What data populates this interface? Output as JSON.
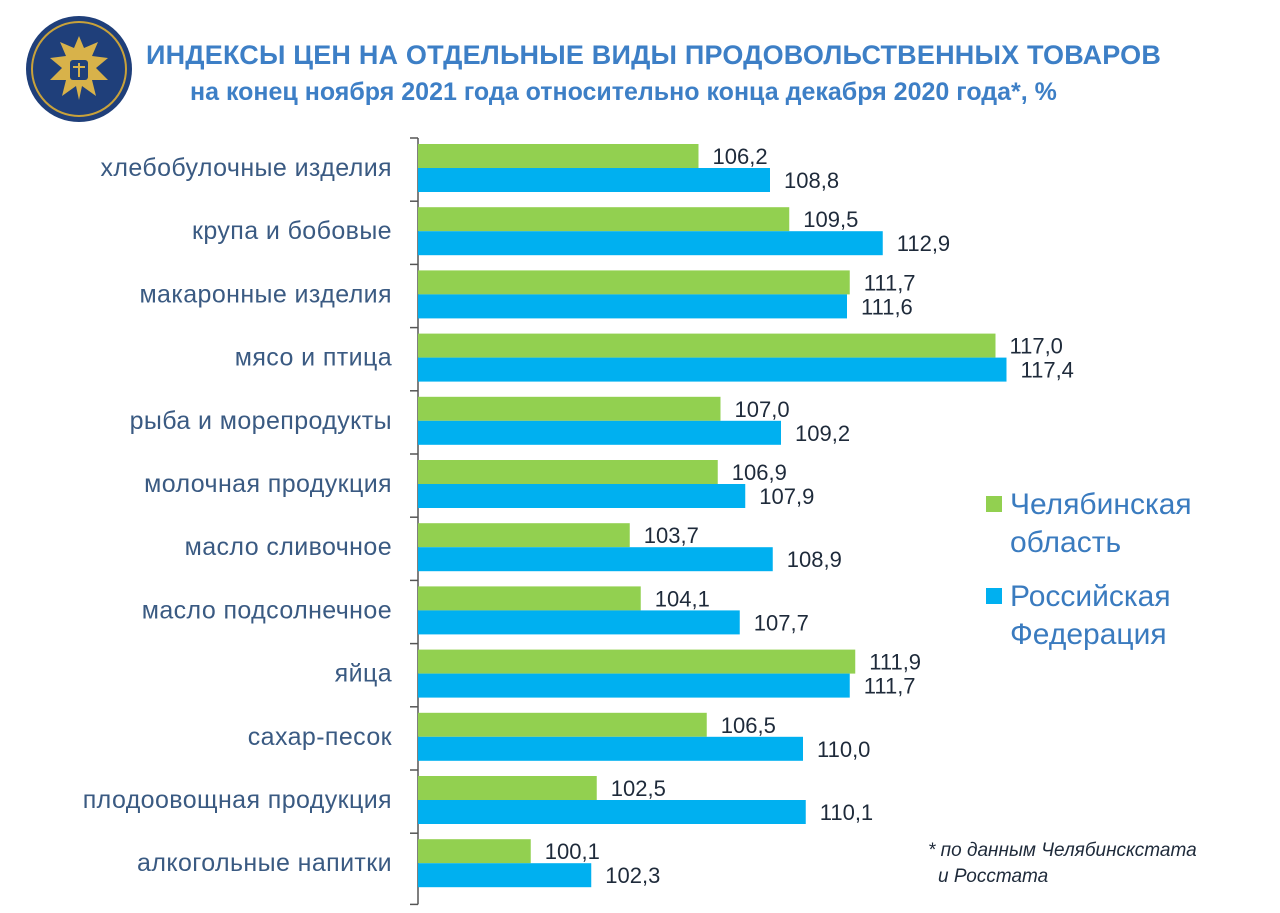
{
  "header": {
    "title": "ИНДЕКСЫ ЦЕН НА ОТДЕЛЬНЫЕ ВИДЫ ПРОДОВОЛЬСТВЕННЫХ ТОВАРОВ",
    "subtitle": "на конец ноября 2021 года относительно конца декабря 2020 года*, %"
  },
  "legend": {
    "items": [
      {
        "label_line1": "Челябинская",
        "label_line2": "область",
        "color": "#92d050"
      },
      {
        "label_line1": "Российская",
        "label_line2": "Федерация",
        "color": "#00b0f0"
      }
    ]
  },
  "footnote": {
    "line1": "* по данным Челябинскстата",
    "line2": "и Росстата"
  },
  "colors": {
    "title": "#3d7fc6",
    "category_label": "#3a5a82",
    "value_label": "#1e2a3a",
    "axis": "#555555"
  },
  "chart_data": {
    "type": "bar",
    "orientation": "horizontal",
    "categories": [
      "хлебобулочные изделия",
      "крупа и бобовые",
      "макаронные изделия",
      "мясо и птица",
      "рыба и морепродукты",
      "молочная продукция",
      "масло сливочное",
      "масло подсолнечное",
      "яйца",
      "сахар-песок",
      "плодоовощная продукция",
      "алкогольные напитки"
    ],
    "series": [
      {
        "name": "Челябинская область",
        "color": "#92d050",
        "values": [
          106.2,
          109.5,
          111.7,
          117.0,
          107.0,
          106.9,
          103.7,
          104.1,
          111.9,
          106.5,
          102.5,
          100.1
        ],
        "labels": [
          "106,2",
          "109,5",
          "111,7",
          "117,0",
          "107,0",
          "106,9",
          "103,7",
          "104,1",
          "111,9",
          "106,5",
          "102,5",
          "100,1"
        ]
      },
      {
        "name": "Российская Федерация",
        "color": "#00b0f0",
        "values": [
          108.8,
          112.9,
          111.6,
          117.4,
          109.2,
          107.9,
          108.9,
          107.7,
          111.7,
          110.0,
          110.1,
          102.3
        ],
        "labels": [
          "108,8",
          "112,9",
          "111,6",
          "117,4",
          "109,2",
          "107,9",
          "108,9",
          "107,7",
          "111,7",
          "110,0",
          "110,1",
          "102,3"
        ]
      }
    ],
    "xlim": [
      96.0,
      118.0
    ],
    "grid": false,
    "legend_position": "right"
  }
}
